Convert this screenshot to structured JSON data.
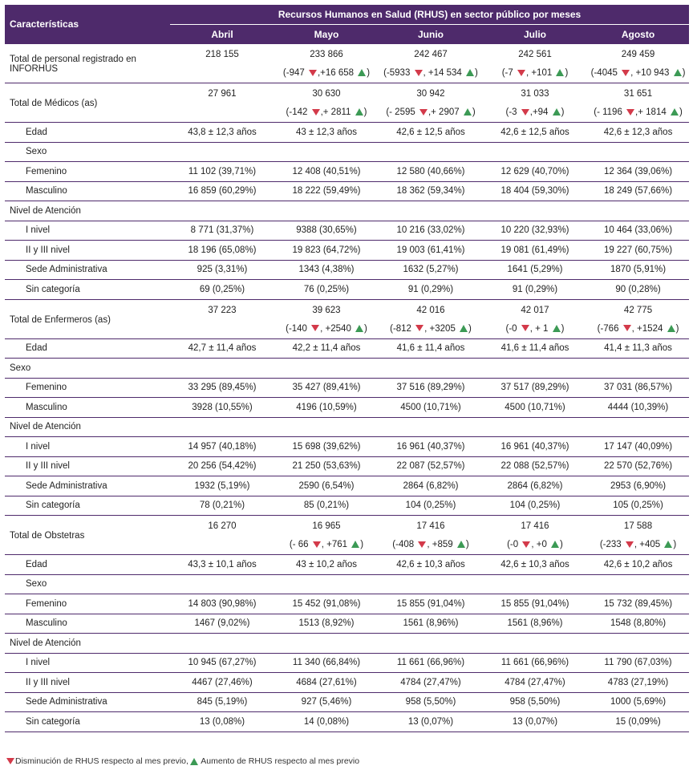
{
  "header": {
    "characteristics": "Características",
    "group_title": "Recursos Humanos en Salud (RHUS) en sector público por meses",
    "months": [
      "Abril",
      "Mayo",
      "Junio",
      "Julio",
      "Agosto"
    ]
  },
  "colors": {
    "header_bg": "#4e2a6b",
    "decrease": "#d33a4a",
    "increase": "#3c9a55"
  },
  "rows": [
    {
      "type": "total",
      "label": "Total de personal registrado en INFORHUS",
      "values": [
        "218 155",
        "233 866",
        "242 467",
        "242 561",
        "249 459"
      ],
      "changes": [
        null,
        [
          "(-947 ",
          ",+16 658 ",
          ")"
        ],
        [
          "(-5933 ",
          ", +14 534 ",
          ")"
        ],
        [
          "(-7 ",
          ", +101 ",
          ")"
        ],
        [
          "(-4045 ",
          ", +10 943 ",
          ")"
        ]
      ]
    },
    {
      "type": "total",
      "label": "Total de Médicos (as)",
      "values": [
        "27 961",
        "30 630",
        "30 942",
        "31 033",
        "31 651"
      ],
      "changes": [
        null,
        [
          "(-142 ",
          ",+ 2811 ",
          ")"
        ],
        [
          "(- 2595 ",
          ",+ 2907 ",
          ")"
        ],
        [
          "(-3 ",
          ",+94 ",
          ")"
        ],
        [
          "(- 1196 ",
          ",+ 1814 ",
          ")"
        ]
      ]
    },
    {
      "type": "data",
      "indent": true,
      "sep": true,
      "label": "Edad",
      "values": [
        "43,8 ± 12,3 años",
        "43 ± 12,3 años",
        "42,6 ± 12,5 años",
        "42,6 ± 12,5 años",
        "42,6 ± 12,3 años"
      ]
    },
    {
      "type": "data",
      "indent": true,
      "sep": true,
      "label": "Sexo",
      "values": [
        "",
        "",
        "",
        "",
        ""
      ]
    },
    {
      "type": "data",
      "indent": true,
      "sep": true,
      "label": "Femenino",
      "values": [
        "11 102 (39,71%)",
        "12 408 (40,51%)",
        "12 580 (40,66%)",
        "12 629 (40,70%)",
        "12 364 (39,06%)"
      ]
    },
    {
      "type": "data",
      "indent": true,
      "sep": true,
      "label": "Masculino",
      "values": [
        "16 859 (60,29%)",
        "18 222 (59,49%)",
        "18 362 (59,34%)",
        "18 404 (59,30%)",
        "18 249 (57,66%)"
      ]
    },
    {
      "type": "data",
      "indent": false,
      "sep": true,
      "label": "Nivel de Atención",
      "values": [
        "",
        "",
        "",
        "",
        ""
      ]
    },
    {
      "type": "data",
      "indent": true,
      "sep": true,
      "label": "I nivel",
      "values": [
        "8 771 (31,37%)",
        "9388 (30,65%)",
        "10 216 (33,02%)",
        "10 220 (32,93%)",
        "10 464 (33,06%)"
      ]
    },
    {
      "type": "data",
      "indent": true,
      "sep": true,
      "label": "II y III nivel",
      "values": [
        "18 196 (65,08%)",
        "19 823 (64,72%)",
        "19 003 (61,41%)",
        "19 081 (61,49%)",
        "19 227 (60,75%)"
      ]
    },
    {
      "type": "data",
      "indent": true,
      "sep": true,
      "label": "Sede Administrativa",
      "values": [
        "925 (3,31%)",
        "1343 (4,38%)",
        "1632 (5,27%)",
        "1641 (5,29%)",
        "1870 (5,91%)"
      ]
    },
    {
      "type": "data",
      "indent": true,
      "sep": true,
      "label": "Sin categoría",
      "values": [
        "69 (0,25%)",
        "76 (0,25%)",
        "91 (0,29%)",
        "91 (0,29%)",
        "90 (0,28%)"
      ]
    },
    {
      "type": "total",
      "label": "Total de Enfermeros (as)",
      "values": [
        "37 223",
        "39 623",
        "42 016",
        "42 017",
        "42 775"
      ],
      "changes": [
        null,
        [
          "(-140 ",
          ", +2540 ",
          ")"
        ],
        [
          "(-812 ",
          ", +3205 ",
          ")"
        ],
        [
          "(-0 ",
          ", + 1 ",
          ")"
        ],
        [
          "(-766 ",
          ", +1524 ",
          ")"
        ]
      ]
    },
    {
      "type": "data",
      "indent": true,
      "sep": true,
      "label": "Edad",
      "values": [
        "42,7 ± 11,4 años",
        "42,2 ± 11,4 años",
        "41,6 ± 11,4 años",
        "41,6 ± 11,4 años",
        "41,4 ± 11,3 años"
      ]
    },
    {
      "type": "data",
      "indent": false,
      "sep": true,
      "label": "Sexo",
      "values": [
        "",
        "",
        "",
        "",
        ""
      ]
    },
    {
      "type": "data",
      "indent": true,
      "sep": true,
      "label": "Femenino",
      "values": [
        "33 295 (89,45%)",
        "35 427 (89,41%)",
        "37 516 (89,29%)",
        "37 517 (89,29%)",
        "37 031 (86,57%)"
      ]
    },
    {
      "type": "data",
      "indent": true,
      "sep": true,
      "label": "Masculino",
      "values": [
        "3928 (10,55%)",
        "4196 (10,59%)",
        "4500 (10,71%)",
        "4500 (10,71%)",
        "4444 (10,39%)"
      ]
    },
    {
      "type": "data",
      "indent": false,
      "sep": true,
      "label": "Nivel de Atención",
      "values": [
        "",
        "",
        "",
        "",
        ""
      ]
    },
    {
      "type": "data",
      "indent": true,
      "sep": true,
      "label": "I nivel",
      "values": [
        "14 957 (40,18%)",
        "15 698 (39,62%)",
        "16 961 (40,37%)",
        "16 961 (40,37%)",
        "17 147 (40,09%)"
      ]
    },
    {
      "type": "data",
      "indent": true,
      "sep": true,
      "label": "II y III nivel",
      "values": [
        "20 256 (54,42%)",
        "21 250 (53,63%)",
        "22 087 (52,57%)",
        "22 088 (52,57%)",
        "22 570 (52,76%)"
      ]
    },
    {
      "type": "data",
      "indent": true,
      "sep": true,
      "label": "Sede Administrativa",
      "values": [
        "1932 (5,19%)",
        "2590 (6,54%)",
        "2864 (6,82%)",
        "2864 (6,82%)",
        "2953 (6,90%)"
      ]
    },
    {
      "type": "data",
      "indent": true,
      "sep": true,
      "label": "Sin categoría",
      "values": [
        "78 (0,21%)",
        "85 (0,21%)",
        "104 (0,25%)",
        "104 (0,25%)",
        "105 (0,25%)"
      ]
    },
    {
      "type": "total",
      "label": "Total de Obstetras",
      "values": [
        "16 270",
        "16 965",
        "17 416",
        "17 416",
        "17 588"
      ],
      "changes": [
        null,
        [
          "(- 66 ",
          ", +761 ",
          ")"
        ],
        [
          "(-408 ",
          ", +859 ",
          ")"
        ],
        [
          "(-0 ",
          ", +0 ",
          ")"
        ],
        [
          "(-233 ",
          ", +405 ",
          ")"
        ]
      ]
    },
    {
      "type": "data",
      "indent": true,
      "sep": true,
      "label": "Edad",
      "values": [
        "43,3 ± 10,1 años",
        "43 ± 10,2 años",
        "42,6 ± 10,3 años",
        "42,6 ± 10,3 años",
        "42,6 ± 10,2 años"
      ]
    },
    {
      "type": "data",
      "indent": true,
      "sep": true,
      "label": "Sexo",
      "values": [
        "",
        "",
        "",
        "",
        ""
      ]
    },
    {
      "type": "data",
      "indent": true,
      "sep": true,
      "label": "Femenino",
      "values": [
        "14 803 (90,98%)",
        "15 452 (91,08%)",
        "15 855 (91,04%)",
        "15 855 (91,04%)",
        "15 732 (89,45%)"
      ]
    },
    {
      "type": "data",
      "indent": true,
      "sep": true,
      "label": "Masculino",
      "values": [
        "1467 (9,02%)",
        "1513 (8,92%)",
        "1561 (8,96%)",
        "1561 (8,96%)",
        "1548 (8,80%)"
      ]
    },
    {
      "type": "data",
      "indent": false,
      "sep": true,
      "label": "Nivel de Atención",
      "values": [
        "",
        "",
        "",
        "",
        ""
      ]
    },
    {
      "type": "data",
      "indent": true,
      "sep": true,
      "label": "I nivel",
      "values": [
        "10 945 (67,27%)",
        "11 340 (66,84%)",
        "11 661 (66,96%)",
        "11 661 (66,96%)",
        "11 790 (67,03%)"
      ]
    },
    {
      "type": "data",
      "indent": true,
      "sep": true,
      "label": "II y III nivel",
      "values": [
        "4467 (27,46%)",
        "4684 (27,61%)",
        "4784 (27,47%)",
        "4784 (27,47%)",
        "4783 (27,19%)"
      ]
    },
    {
      "type": "data",
      "indent": true,
      "sep": true,
      "label": "Sede Administrativa",
      "values": [
        "845 (5,19%)",
        "927 (5,46%)",
        "958 (5,50%)",
        "958 (5,50%)",
        "1000 (5,69%)"
      ]
    },
    {
      "type": "data",
      "indent": true,
      "sep": true,
      "last": true,
      "label": "Sin categoría",
      "values": [
        "13 (0,08%)",
        "14 (0,08%)",
        "13 (0,07%)",
        "13 (0,07%)",
        "15 (0,09%)"
      ]
    }
  ],
  "footnote": {
    "decrease_text": "Disminución de RHUS respecto al mes previo,",
    "increase_text": " Aumento de RHUS respecto al mes previo"
  }
}
